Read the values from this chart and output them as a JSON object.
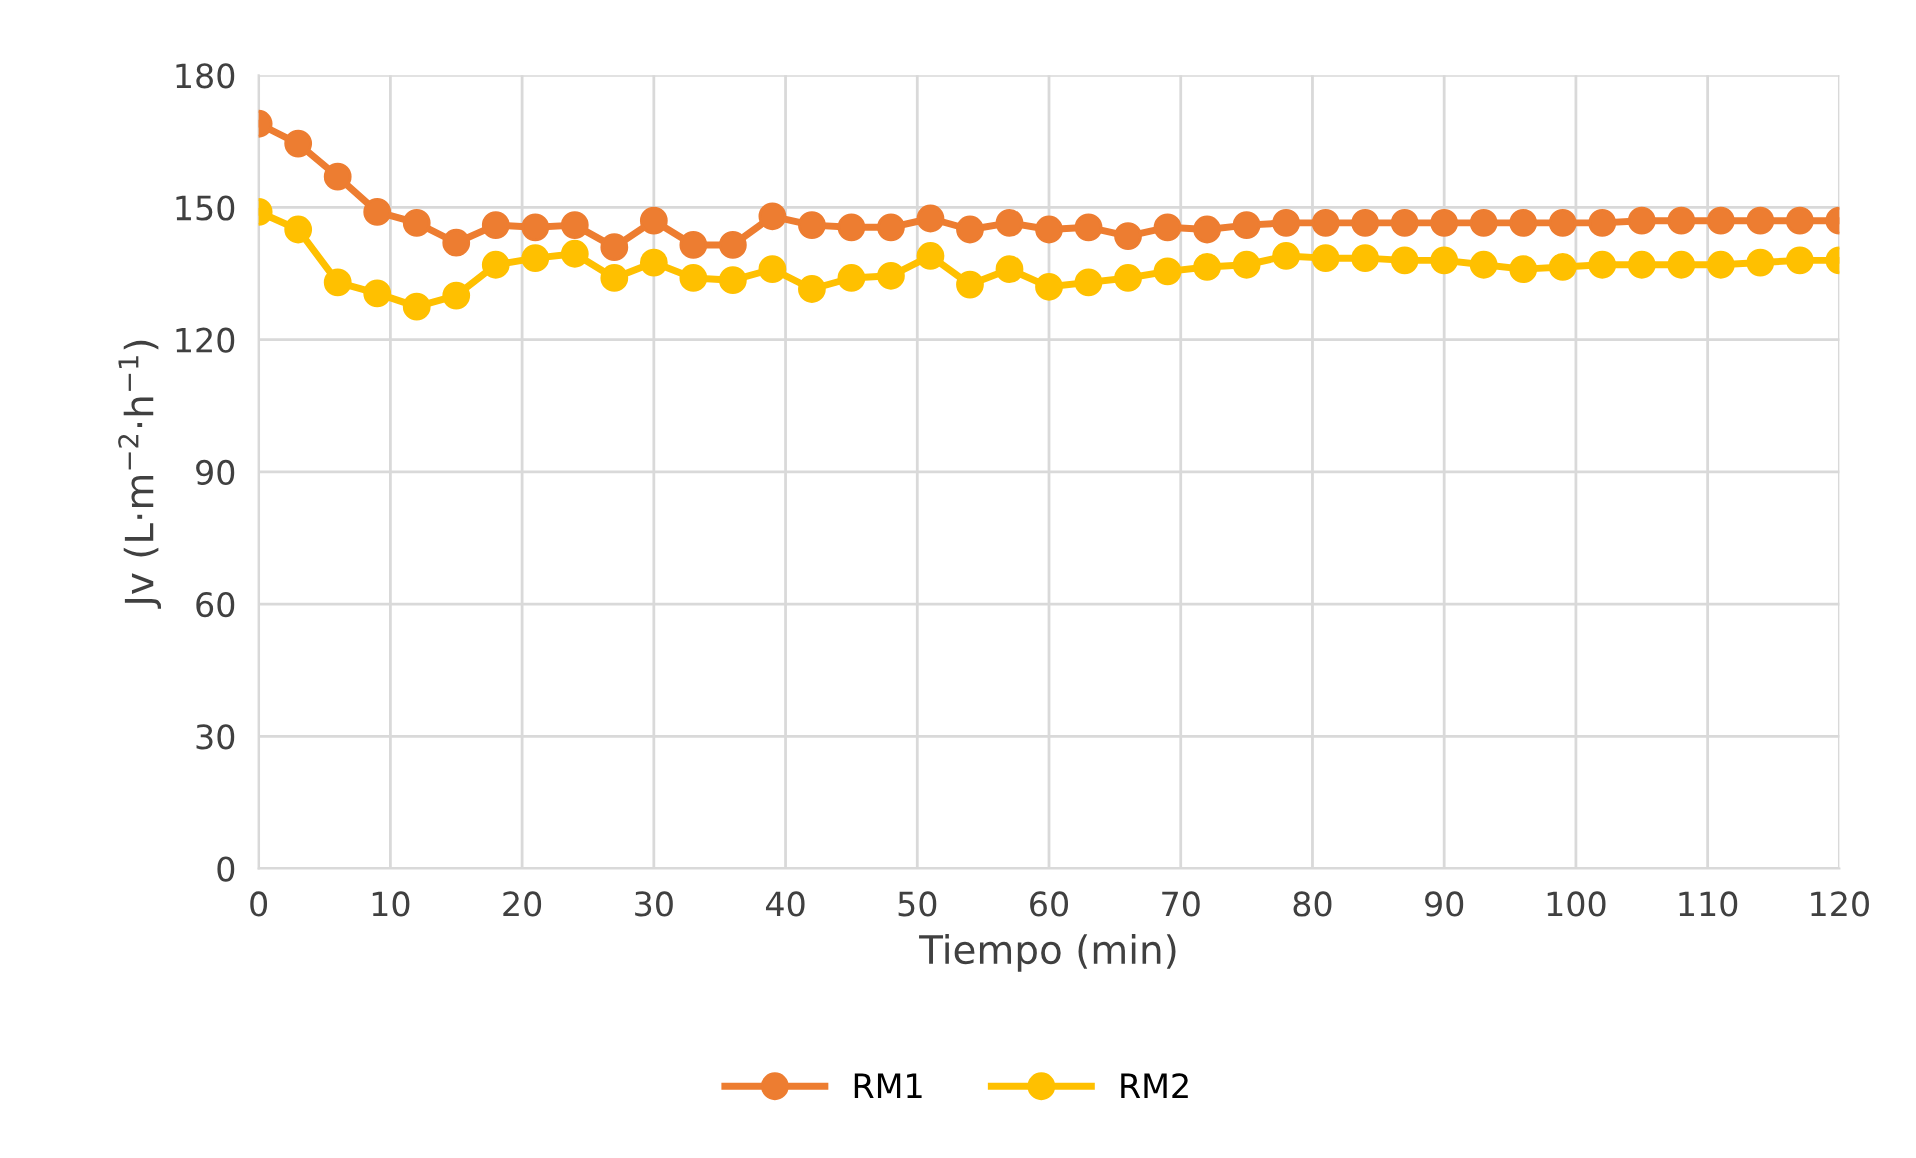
{
  "chart_data": {
    "type": "line",
    "xlabel": "Tiempo (min)",
    "ylabel": "Jv (L·m$^{−2}$·h$^{−1}$)",
    "x": [
      0,
      3,
      6,
      9,
      12,
      15,
      18,
      21,
      24,
      27,
      30,
      33,
      36,
      39,
      42,
      45,
      48,
      51,
      54,
      57,
      60,
      63,
      66,
      69,
      72,
      75,
      78,
      81,
      84,
      87,
      90,
      93,
      96,
      99,
      102,
      105,
      108,
      111,
      114,
      117,
      120
    ],
    "series": [
      {
        "name": "RM1",
        "color": "#ed7d31",
        "values": [
          169,
          164.5,
          157,
          149,
          146.5,
          142,
          146,
          145.5,
          146,
          141,
          147,
          141.5,
          141.5,
          148,
          146,
          145.5,
          145.5,
          147.5,
          145,
          146.5,
          145,
          145.5,
          143.5,
          145.5,
          145,
          146,
          146.5,
          146.5,
          146.5,
          146.5,
          146.5,
          146.5,
          146.5,
          146.5,
          146.5,
          147,
          147,
          147,
          147,
          147,
          147
        ]
      },
      {
        "name": "RM2",
        "color": "#ffc000",
        "values": [
          149,
          145,
          133,
          130.5,
          127.5,
          130,
          137,
          138.5,
          139.5,
          134,
          137.5,
          134,
          133.5,
          136,
          131.5,
          134,
          134.5,
          139,
          132.5,
          136,
          132,
          133,
          134,
          135.5,
          136.5,
          137,
          139,
          138.5,
          138.5,
          138,
          138,
          137,
          136,
          136.5,
          137,
          137,
          137,
          137,
          137.5,
          138,
          138
        ]
      }
    ],
    "xlim": [
      0,
      120
    ],
    "xticks": [
      0,
      10,
      20,
      30,
      40,
      50,
      60,
      70,
      80,
      90,
      100,
      110,
      120
    ],
    "ylim": [
      0,
      180
    ],
    "yticks": [
      0,
      30,
      60,
      90,
      120,
      150,
      180
    ],
    "grid": true,
    "legend": "bottom",
    "marker": "circle",
    "line_style": "solid"
  }
}
